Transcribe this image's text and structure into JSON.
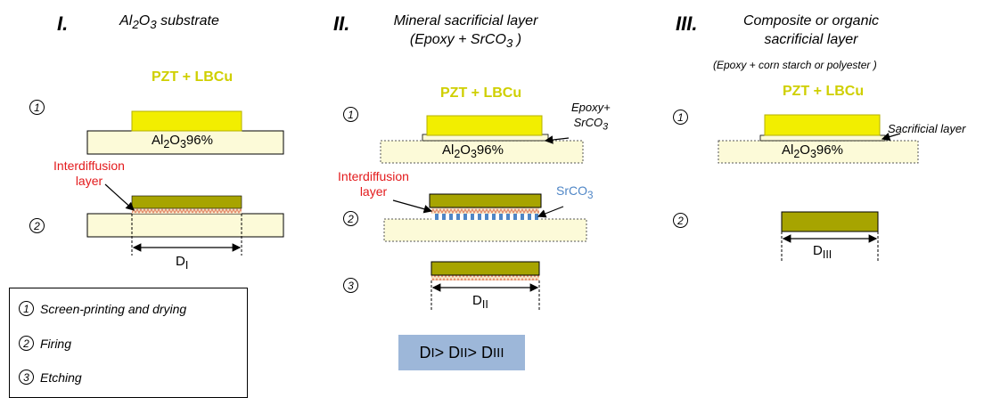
{
  "colors": {
    "pzt": "#f2ee00",
    "pzt_border": "#b4b000",
    "substrate": "#fcfad8",
    "fired": "#a7a400",
    "interdiffusion": "#e08060",
    "srco3": "#4f86c6",
    "label_red": "#e31a1c",
    "label_yellow": "#cfcf00",
    "ineq_bg": "#9db7d9"
  },
  "columns": [
    {
      "roman": "I.",
      "title_html": "Al<sub>2</sub>O<sub>3</sub> substrate",
      "pzt_label": "PZT + LBCu",
      "substrate_html": "Al<sub>2</sub>O<sub>3</sub>96%",
      "interdiffusion_label": "Interdiffusion\nlayer",
      "dimension_html": "D<sub>I</sub>",
      "steps": [
        "1",
        "2"
      ]
    },
    {
      "roman": "II.",
      "title_html": "Mineral sacrificial layer<br>(Epoxy + SrCO<sub>3</sub> )",
      "pzt_label": "PZT + LBCu",
      "substrate_html": "Al<sub>2</sub>O<sub>3</sub>96%",
      "epoxy_label_html": "Epoxy+<br>SrCO<sub>3</sub>",
      "interdiffusion_label": "Interdiffusion\nlayer",
      "srco3_label_html": "SrCO<sub>3</sub>",
      "dimension_html": "D<sub>II</sub>",
      "steps": [
        "1",
        "2",
        "3"
      ]
    },
    {
      "roman": "III.",
      "title_html": "Composite or organic<br>sacrificial layer",
      "subtitle": "(Epoxy + corn starch or polyester )",
      "pzt_label": "PZT + LBCu",
      "substrate_html": "Al<sub>2</sub>O<sub>3</sub>96%",
      "sacrificial_label": "Sacrificial layer",
      "dimension_html": "D<sub>III</sub>",
      "steps": [
        "1",
        "2"
      ]
    }
  ],
  "legend": [
    {
      "num": "1",
      "text": "Screen-printing and drying"
    },
    {
      "num": "2",
      "text": "Firing"
    },
    {
      "num": "3",
      "text": "Etching"
    }
  ],
  "inequality_html": "D<sub>I</sub>&gt; D<sub>II</sub> &gt; D<sub>III</sub>"
}
